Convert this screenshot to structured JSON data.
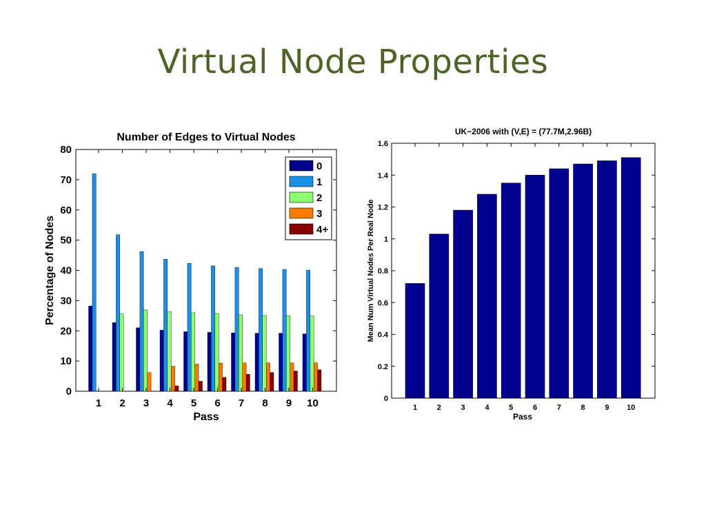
{
  "slide": {
    "title": "Virtual Node Properties"
  },
  "chart_data": [
    {
      "type": "bar",
      "title": "Number of Edges to Virtual Nodes",
      "xlabel": "Pass",
      "ylabel": "Percentage of Nodes",
      "ylim": [
        0,
        80
      ],
      "yticks": [
        0,
        10,
        20,
        30,
        40,
        50,
        60,
        70,
        80
      ],
      "categories": [
        "1",
        "2",
        "3",
        "4",
        "5",
        "6",
        "7",
        "8",
        "9",
        "10"
      ],
      "legend_position": "top-right",
      "grid": false,
      "series": [
        {
          "name": "0",
          "color": "#00008f",
          "values": [
            28.2,
            22.7,
            21.0,
            20.2,
            19.7,
            19.5,
            19.3,
            19.2,
            19.2,
            19.0
          ]
        },
        {
          "name": "1",
          "color": "#1c8fe8",
          "values": [
            72.0,
            51.8,
            46.2,
            43.7,
            42.3,
            41.5,
            41.0,
            40.6,
            40.3,
            40.1
          ]
        },
        {
          "name": "2",
          "color": "#8fff70",
          "values": [
            0.0,
            25.6,
            26.9,
            26.4,
            26.0,
            25.7,
            25.3,
            25.1,
            25.0,
            24.9
          ]
        },
        {
          "name": "3",
          "color": "#ff7a00",
          "values": [
            0.0,
            0.0,
            6.2,
            8.3,
            9.0,
            9.3,
            9.4,
            9.4,
            9.4,
            9.4
          ]
        },
        {
          "name": "4+",
          "color": "#8a0000",
          "values": [
            0.0,
            0.0,
            0.0,
            1.8,
            3.3,
            4.6,
            5.6,
            6.2,
            6.7,
            7.1
          ]
        }
      ]
    },
    {
      "type": "bar",
      "title": "UK−2006 with (V,E) = (77.7M,2.96B)",
      "xlabel": "Pass",
      "ylabel": "Mean Num Virtual Nodes Per Real Node",
      "ylim": [
        0,
        1.6
      ],
      "yticks": [
        "0",
        "0.2",
        "0.4",
        "0.6",
        "0.8",
        "1",
        "1.2",
        "1.4",
        "1.6"
      ],
      "categories": [
        "1",
        "2",
        "3",
        "4",
        "5",
        "6",
        "7",
        "8",
        "9",
        "10"
      ],
      "grid": false,
      "series": [
        {
          "color": "#00008f",
          "values": [
            0.72,
            1.03,
            1.18,
            1.28,
            1.35,
            1.4,
            1.44,
            1.47,
            1.49,
            1.51
          ]
        }
      ]
    }
  ]
}
